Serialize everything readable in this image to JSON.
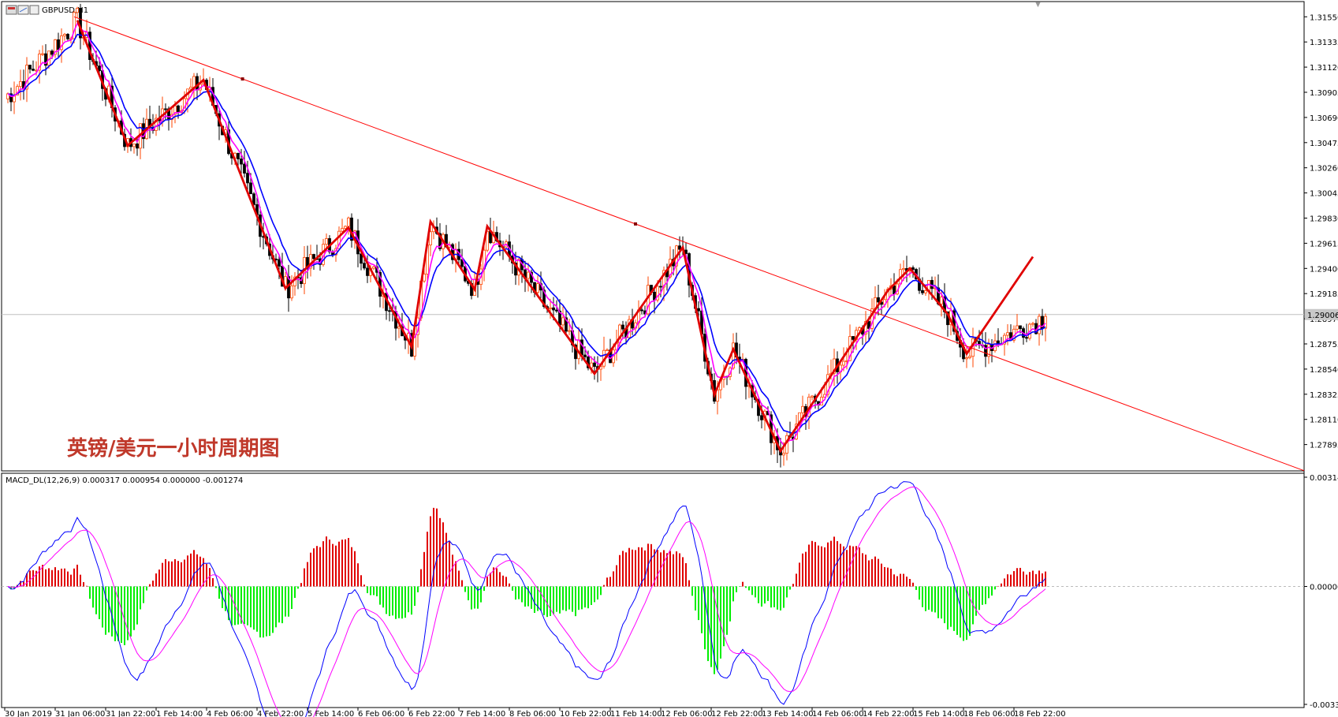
{
  "window": {
    "symbol_label": "GBPUSD,H1",
    "chart_title": "英镑/美元一小时周期图",
    "macd_label": "MACD_DL(12,26,9) 0.000317 0.000954 0.000000 -0.001274"
  },
  "icons": [
    "window-icon",
    "chart-icon",
    "properties-icon"
  ],
  "colors": {
    "trend_line": "#ff0000",
    "zigzag": "#e00000",
    "ma_fast": "#ff00ff",
    "ma_slow": "#0000ff",
    "candle_up": "#ff4400",
    "candle_down": "#000000",
    "hist_pos": "#e00000",
    "hist_neg": "#00ee00",
    "macd_line": "#0000ff",
    "signal_line": "#ff00ff"
  },
  "chart_data": [
    {
      "type": "candlestick",
      "title": "英镑/美元一小时周期图",
      "price_ticks": [
        "1.31550",
        "1.31335",
        "1.31120",
        "1.30905",
        "1.30690",
        "1.30475",
        "1.30260",
        "1.30045",
        "1.29830",
        "1.29615",
        "1.29400",
        "1.29185",
        "1.28970",
        "1.28755",
        "1.28540",
        "1.28325",
        "1.28110",
        "1.27895"
      ],
      "current_price": "1.29006",
      "ylim": [
        1.2767,
        1.3168
      ],
      "x_labels": [
        "30 Jan 2019",
        "31 Jan 06:00",
        "31 Jan 22:00",
        "1 Feb 14:00",
        "4 Feb 06:00",
        "4 Feb 22:00",
        "5 Feb 14:00",
        "6 Feb 06:00",
        "6 Feb 22:00",
        "7 Feb 14:00",
        "8 Feb 06:00",
        "10 Feb 22:00",
        "11 Feb 14:00",
        "12 Feb 06:00",
        "12 Feb 22:00",
        "13 Feb 14:00",
        "14 Feb 06:00",
        "14 Feb 22:00",
        "15 Feb 14:00",
        "18 Feb 06:00",
        "18 Feb 22:00"
      ],
      "zigzag": [
        {
          "bar": 23,
          "price": 1.3152
        },
        {
          "bar": 39,
          "price": 1.3045
        },
        {
          "bar": 63,
          "price": 1.3101
        },
        {
          "bar": 89,
          "price": 1.2923
        },
        {
          "bar": 109,
          "price": 1.2975
        },
        {
          "bar": 129,
          "price": 1.2873
        },
        {
          "bar": 135,
          "price": 1.298
        },
        {
          "bar": 149,
          "price": 1.2922
        },
        {
          "bar": 153,
          "price": 1.2976
        },
        {
          "bar": 187,
          "price": 1.285
        },
        {
          "bar": 215,
          "price": 1.2958
        },
        {
          "bar": 225,
          "price": 1.2832
        },
        {
          "bar": 231,
          "price": 1.2871
        },
        {
          "bar": 246,
          "price": 1.2784
        },
        {
          "bar": 280,
          "price": 1.2921
        },
        {
          "bar": 287,
          "price": 1.294
        },
        {
          "bar": 299,
          "price": 1.2901
        },
        {
          "bar": 305,
          "price": 1.2867
        },
        {
          "bar": 326,
          "price": 1.295
        }
      ],
      "trendline": {
        "from": {
          "bar": 22,
          "price": 1.3155
        },
        "to": {
          "bar": 378,
          "price": 1.2801
        }
      }
    },
    {
      "type": "bar",
      "name": "MACD_DL(12,26,9)",
      "ticks": [
        "0.003147",
        "0.000000",
        "-0.003366"
      ],
      "ylim": [
        -0.003366,
        0.003147
      ]
    }
  ]
}
